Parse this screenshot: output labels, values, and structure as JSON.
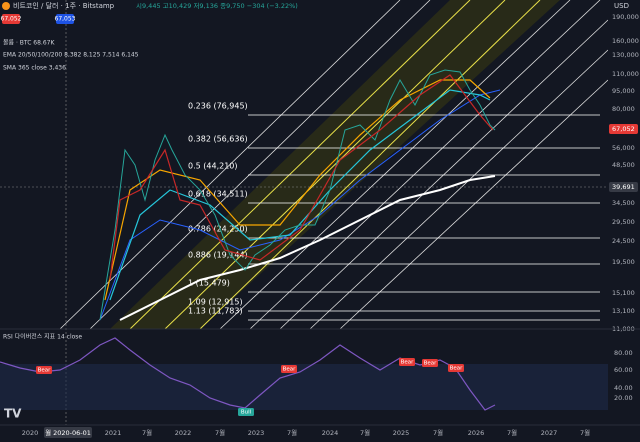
{
  "header": {
    "price_sell": "67,052",
    "price_buy": "67,053",
    "symbol": "비트코인 / 달러 · 1주 · Bitstamp",
    "ohlc": "시9,445 고10,429 저9,136 종9,750 −304 (−3.22%)",
    "currency": "USD"
  },
  "legend": [
    "볼륨 · BTC 68.67K",
    "EMA 20/50/100/200 8,382 8,125 7,514 6,145",
    "SMA 365 close 3,436"
  ],
  "fib_levels": [
    "0.236 (76,945)",
    "0.382 (56,636)",
    "0.5 (44,210)",
    "0.618 (34,511)",
    "0.786 (24,250)",
    "0.886 (19,144)",
    "1 (15,479)",
    "1.09 (12,915)",
    "1.13 (11,783)"
  ],
  "price_axis": [
    "190,000",
    "160,000",
    "130,000",
    "110,000",
    "95,000",
    "80,000",
    "67,052",
    "56,000",
    "48,500",
    "39,691",
    "34,500",
    "29,500",
    "24,500",
    "19,500",
    "15,100",
    "13,100",
    "11,000"
  ],
  "rsi": {
    "title": "RSI 다이버전스 지표 14 close",
    "axis": [
      "80.00",
      "60.00",
      "40.00",
      "20.00"
    ],
    "signals": [
      "Bear",
      "Bear",
      "Bear",
      "Bear",
      "Bear",
      "Bull"
    ]
  },
  "time_axis": {
    "cursor": "월 2020-06-01",
    "labels": [
      "2020",
      "2021",
      "7월",
      "2022",
      "7월",
      "2023",
      "7월",
      "2024",
      "7월",
      "2025",
      "7월",
      "2026",
      "7월",
      "2027",
      "7월"
    ]
  }
}
